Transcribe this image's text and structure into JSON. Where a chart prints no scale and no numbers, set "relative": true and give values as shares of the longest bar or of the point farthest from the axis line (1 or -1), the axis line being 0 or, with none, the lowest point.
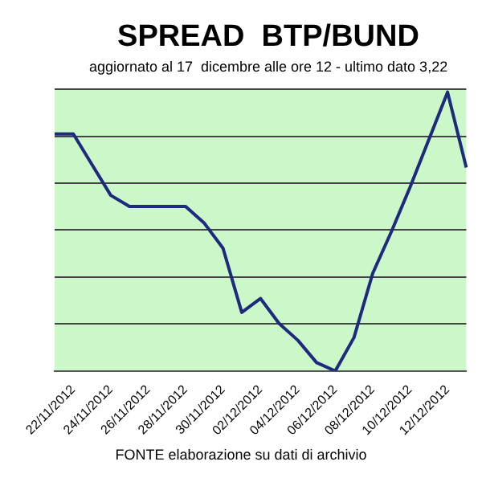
{
  "chart_data": {
    "type": "line",
    "title": "SPREAD  BTP/BUND",
    "subtitle": "aggiornato al 17  dicembre alle ore 12 - ultimo dato 3,22",
    "relative": true,
    "categories": [
      null,
      "22/11/2012",
      null,
      "24/11/2012",
      null,
      "26/11/2012",
      null,
      "28/11/2012",
      null,
      "30/11/2012",
      null,
      "02/12/2012",
      null,
      "04/12/2012",
      null,
      "06/12/2012",
      null,
      "08/12/2012",
      null,
      "10/12/2012",
      null,
      "12/12/2012",
      null
    ],
    "series": [
      {
        "color": "#1c2b7e",
        "values": [
          0.85,
          0.85,
          0.74,
          0.63,
          0.59,
          0.59,
          0.59,
          0.59,
          0.53,
          0.44,
          0.21,
          0.26,
          0.17,
          0.11,
          0.03,
          0,
          0.12,
          0.35,
          0.5,
          0.66,
          0.83,
          1,
          0.73
        ]
      }
    ],
    "grid": "y",
    "legend": false,
    "marker": "none",
    "line_style": "solid",
    "annotations": [
      "FONTE elaborazione su dati di archivio"
    ]
  }
}
